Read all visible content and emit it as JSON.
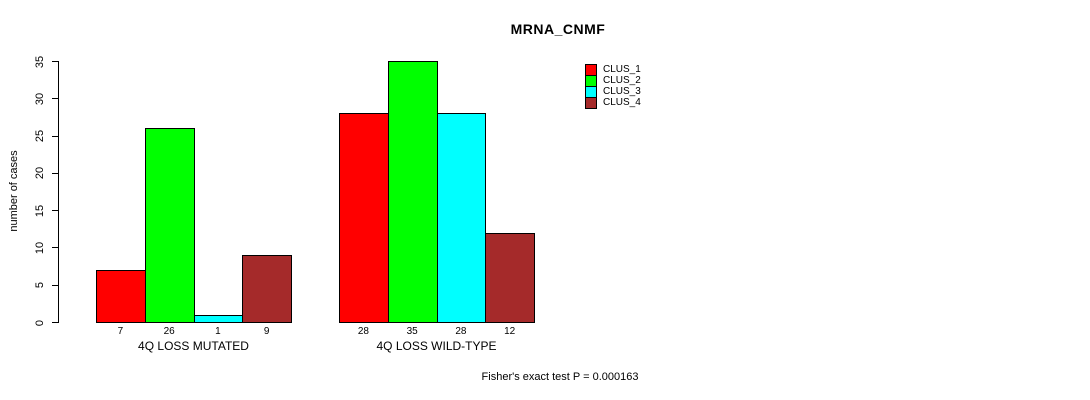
{
  "title": "MRNA_CNMF",
  "annotation": "Fisher's exact test P = 0.000163",
  "chart_data": {
    "type": "bar",
    "title": "MRNA_CNMF",
    "ylabel": "number of cases",
    "xlabel": "",
    "ylim": [
      0,
      35
    ],
    "yticks": [
      0,
      5,
      10,
      15,
      20,
      25,
      30,
      35
    ],
    "grid": false,
    "legend_position": "top-right",
    "categories": [
      "4Q LOSS MUTATED",
      "4Q LOSS WILD-TYPE"
    ],
    "series": [
      {
        "name": "CLUS_1",
        "color": "#ff0000",
        "values": [
          7,
          28
        ]
      },
      {
        "name": "CLUS_2",
        "color": "#00ff00",
        "values": [
          26,
          35
        ]
      },
      {
        "name": "CLUS_3",
        "color": "#00ffff",
        "values": [
          1,
          28
        ]
      },
      {
        "name": "CLUS_4",
        "color": "#a52a2a",
        "values": [
          9,
          12
        ]
      }
    ],
    "bar_value_labels": [
      [
        "7",
        "26",
        "1",
        "9"
      ],
      [
        "28",
        "35",
        "28",
        "12"
      ]
    ],
    "annotation": "Fisher's exact test P = 0.000163",
    "colors": {
      "background": "#ffffff",
      "axis": "#000000",
      "text": "#000000"
    }
  }
}
